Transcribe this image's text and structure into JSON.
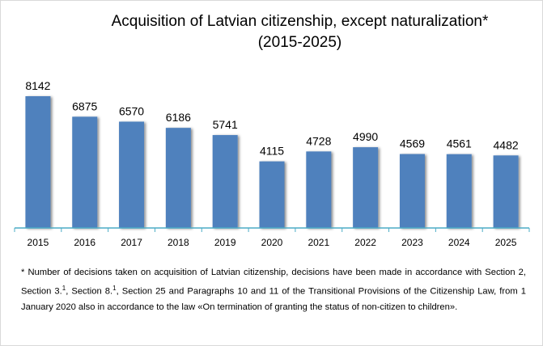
{
  "chart_data": {
    "type": "bar",
    "title": "Acquisition of Latvian citizenship, except naturalization*",
    "subtitle": "(2015-2025)",
    "categories": [
      "2015",
      "2016",
      "2017",
      "2018",
      "2019",
      "2020",
      "2021",
      "2022",
      "2023",
      "2024",
      "2025"
    ],
    "values": [
      8142,
      6875,
      6570,
      6186,
      5741,
      4115,
      4728,
      4990,
      4569,
      4561,
      4482
    ],
    "xlabel": "",
    "ylabel": "",
    "ylim": [
      0,
      8142
    ],
    "grid": false,
    "data_labels": true,
    "bar_color": "#4f81bd",
    "axis_color": "#4bacc6"
  },
  "footnote": {
    "part1": "* Number of decisions taken on acquisition of Latvian citizenship, decisions have been made in accordance with Section 2, Section 3.",
    "sup1": "1",
    "part2": ", Section 8.",
    "sup2": "1",
    "part3": ", Section 25 and Paragraphs 10 and 11 of the Transitional Provisions of the Citizenship Law, from 1 January 2020 also in accordance to the law «On termination of granting the status of non-citizen to children»."
  }
}
